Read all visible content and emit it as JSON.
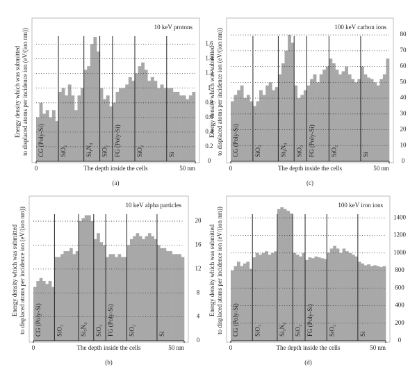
{
  "chart_data": [
    {
      "type": "histogram",
      "panel": "(a)",
      "title": "10 keV protons",
      "ylabel": [
        "Energy density which was submitted",
        "to displaced atoms per incidence ion (eV/(ion nm))"
      ],
      "xlabel": "The depth inside the cells",
      "color": "#a8a8a8",
      "bins": [
        0,
        1,
        2,
        3,
        4,
        5,
        6,
        7,
        8,
        9,
        10,
        11,
        12,
        13,
        14,
        15,
        16,
        17,
        18,
        19,
        20,
        21,
        22,
        23,
        24,
        25,
        26,
        27,
        28,
        29,
        30,
        31,
        32,
        33,
        34,
        35,
        36,
        37,
        38,
        39,
        40,
        41,
        42,
        43,
        44,
        45,
        46,
        47,
        48,
        49,
        50
      ],
      "values": [
        0.6,
        0.8,
        0.65,
        0.7,
        0.6,
        0.7,
        0.55,
        0.95,
        1.0,
        0.9,
        1.05,
        0.9,
        0.7,
        0.9,
        1.0,
        1.25,
        1.3,
        1.6,
        1.7,
        1.5,
        1.0,
        0.85,
        0.9,
        0.75,
        0.8,
        0.95,
        1.0,
        1.0,
        1.05,
        1.15,
        1.1,
        1.2,
        1.3,
        1.35,
        1.25,
        1.1,
        1.15,
        1.1,
        1.0,
        1.05,
        1.0,
        1.0,
        1.0,
        0.95,
        0.95,
        0.9,
        0.9,
        0.85,
        0.9,
        0.95
      ],
      "xlim": [
        0,
        50
      ],
      "xticks": [
        0,
        {
          "value": 50,
          "label": "50 nm"
        }
      ],
      "ylim": [
        0,
        1.9
      ],
      "yticks": [
        0,
        0.2,
        0.4,
        0.6,
        0.8,
        1.0,
        1.2,
        1.4,
        1.6
      ],
      "grid": true,
      "boundaries": [
        7,
        15,
        20,
        24,
        31,
        41
      ],
      "layers": [
        "CG (Poly-Si)",
        "SiO₂",
        "Si₃N₄",
        "SiO₂",
        "FG (Poly-Si)",
        "SiO₂",
        "Si"
      ]
    },
    {
      "type": "histogram",
      "panel": "(c)",
      "title": "100 keV carbon ions",
      "ylabel": [
        "Energy density which was submitted",
        "to displaced atoms per incidence ion (eV/(ion nm))"
      ],
      "xlabel": "The depth inside the cells",
      "color": "#a8a8a8",
      "bins": [
        0,
        1,
        2,
        3,
        4,
        5,
        6,
        7,
        8,
        9,
        10,
        11,
        12,
        13,
        14,
        15,
        16,
        17,
        18,
        19,
        20,
        21,
        22,
        23,
        24,
        25,
        26,
        27,
        28,
        29,
        30,
        31,
        32,
        33,
        34,
        35,
        36,
        37,
        38,
        39,
        40,
        41,
        42,
        43,
        44,
        45,
        46,
        47,
        48,
        49,
        50
      ],
      "values": [
        38,
        42,
        45,
        48,
        40,
        42,
        38,
        35,
        38,
        45,
        42,
        48,
        50,
        45,
        47,
        55,
        62,
        70,
        80,
        75,
        48,
        40,
        42,
        45,
        48,
        52,
        55,
        50,
        55,
        58,
        60,
        65,
        62,
        58,
        55,
        57,
        60,
        55,
        52,
        50,
        52,
        60,
        55,
        53,
        52,
        50,
        48,
        52,
        55,
        65
      ],
      "xlim": [
        0,
        50
      ],
      "xticks": [
        0,
        {
          "value": 50,
          "label": "50 nm"
        }
      ],
      "ylim": [
        0,
        88
      ],
      "yticks": [
        0,
        10,
        20,
        30,
        40,
        50,
        60,
        70,
        80
      ],
      "grid": true,
      "boundaries": [
        7,
        15,
        20,
        24,
        31,
        41
      ],
      "layers": [
        "CG (Poly-Si)",
        "SiO₂",
        "Si₃N₄",
        "SiO₂",
        "FG (Poly-Si)",
        "SiO₂",
        "Si"
      ]
    },
    {
      "type": "histogram",
      "panel": "(b)",
      "title": "10 keV alpha particles",
      "ylabel": [
        "Energy density which was submitted",
        "to displaced atoms per incidence ion (eV/(ion nm))"
      ],
      "xlabel": "The depth inside the cells",
      "color": "#a8a8a8",
      "bins": [
        0,
        1,
        2,
        3,
        4,
        5,
        6,
        7,
        8,
        9,
        10,
        11,
        12,
        13,
        14,
        15,
        16,
        17,
        18,
        19,
        20,
        21,
        22,
        23,
        24,
        25,
        26,
        27,
        28,
        29,
        30,
        31,
        32,
        33,
        34,
        35,
        36,
        37,
        38,
        39,
        40,
        41,
        42,
        43,
        44,
        45,
        46,
        47,
        48,
        49,
        50
      ],
      "values": [
        9,
        10,
        10.5,
        10,
        9.5,
        10,
        9,
        14,
        14,
        14.5,
        15,
        15,
        15.5,
        14.5,
        15,
        20,
        20.5,
        21,
        21,
        20,
        17,
        18,
        16.5,
        16,
        14,
        14.5,
        14.5,
        14,
        14.5,
        14,
        14,
        16,
        17,
        17.5,
        18,
        17.5,
        17,
        17.5,
        18,
        17.5,
        17,
        16,
        15.5,
        15.5,
        15,
        15,
        14.5,
        14.5,
        14.5,
        14
      ],
      "xlim": [
        0,
        50
      ],
      "xticks": [
        0,
        {
          "value": 50,
          "label": "50 nm"
        }
      ],
      "ylim": [
        0,
        23.5
      ],
      "yticks": [
        0,
        4,
        8,
        12,
        16,
        20
      ],
      "grid": true,
      "boundaries": [
        7,
        15,
        20,
        24,
        31,
        41
      ],
      "layers": [
        "CG (Poly-Si)",
        "SiO₂",
        "Si₃N₄",
        "SiO₂",
        "FG (Poly-Si)",
        "SiO₂",
        "Si"
      ]
    },
    {
      "type": "histogram",
      "panel": "(d)",
      "title": "100 keV iron ions",
      "ylabel": [
        "Energy density which was submitted",
        "to displaced atoms per incidence ion (eV/(ion nm))"
      ],
      "xlabel": "The depth inside the cells",
      "color": "#a8a8a8",
      "bins": [
        0,
        1,
        2,
        3,
        4,
        5,
        6,
        7,
        8,
        9,
        10,
        11,
        12,
        13,
        14,
        15,
        16,
        17,
        18,
        19,
        20,
        21,
        22,
        23,
        24,
        25,
        26,
        27,
        28,
        29,
        30,
        31,
        32,
        33,
        34,
        35,
        36,
        37,
        38,
        39,
        40,
        41,
        42,
        43,
        44,
        45,
        46,
        47,
        48,
        49,
        50
      ],
      "values": [
        800,
        850,
        900,
        850,
        880,
        900,
        820,
        950,
        1000,
        980,
        1000,
        1020,
        980,
        1000,
        1020,
        1500,
        1520,
        1500,
        1480,
        1450,
        1000,
        980,
        960,
        1000,
        920,
        950,
        940,
        960,
        950,
        940,
        930,
        1000,
        1050,
        1080,
        1050,
        1000,
        1050,
        1020,
        1000,
        980,
        960,
        900,
        880,
        860,
        870,
        850,
        860,
        850,
        840,
        850
      ],
      "xlim": [
        0,
        50
      ],
      "xticks": [
        0,
        {
          "value": 50,
          "label": "50 nm"
        }
      ],
      "ylim": [
        0,
        1600
      ],
      "yticks": [
        0,
        200,
        400,
        600,
        800,
        1000,
        1200,
        1400
      ],
      "grid": true,
      "boundaries": [
        7,
        15,
        20,
        24,
        31,
        41
      ],
      "layers": [
        "CG (Poly-Si)",
        "SiO₂",
        "Si₃N₄",
        "SiO₂",
        "FG (Poly-Si)",
        "SiO₂",
        "Si"
      ]
    }
  ]
}
